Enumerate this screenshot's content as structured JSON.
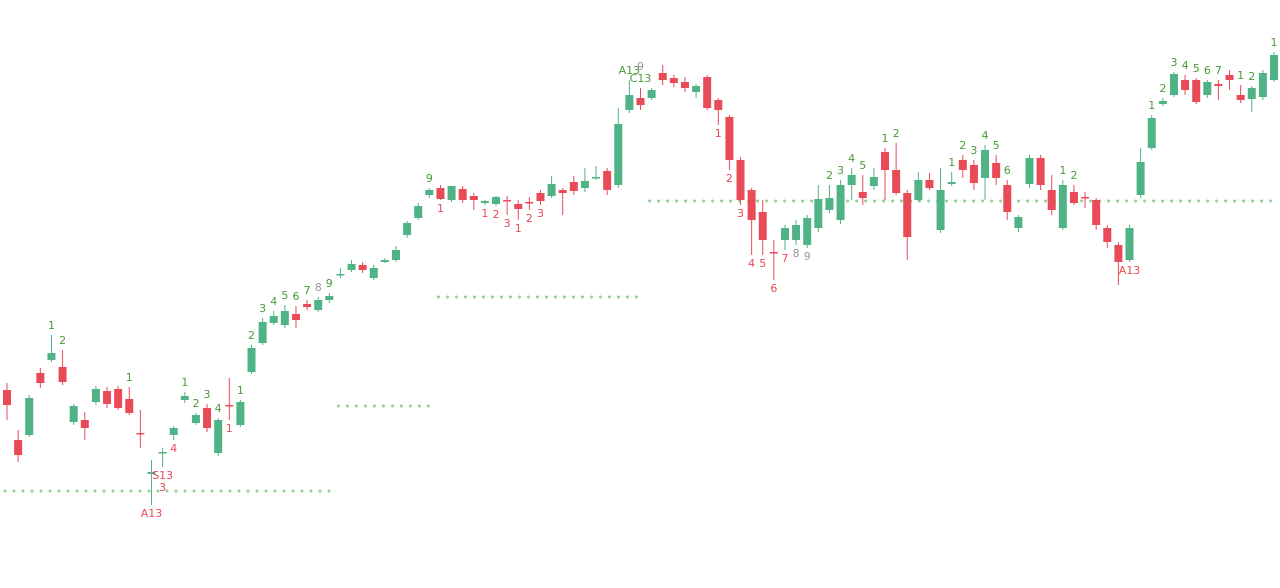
{
  "chart_data": {
    "type": "candlestick",
    "up_color": "#4fb386",
    "down_color": "#e84b57",
    "ylim": [
      0,
      588
    ],
    "ohlc": [
      [
        198,
        205,
        168,
        183
      ],
      [
        148,
        158,
        126,
        133
      ],
      [
        153,
        193,
        151,
        190
      ],
      [
        215,
        220,
        200,
        205
      ],
      [
        228,
        253,
        226,
        235
      ],
      [
        221,
        238,
        203,
        206
      ],
      [
        166,
        184,
        163,
        182
      ],
      [
        168,
        176,
        148,
        160
      ],
      [
        186,
        202,
        183,
        199
      ],
      [
        197,
        201,
        180,
        184
      ],
      [
        199,
        202,
        178,
        180
      ],
      [
        189,
        201,
        173,
        175
      ],
      [
        155,
        178,
        140,
        154
      ],
      [
        114,
        128,
        83,
        116
      ],
      [
        135,
        140,
        121,
        136
      ],
      [
        153,
        162,
        148,
        160
      ],
      [
        188,
        196,
        185,
        192
      ],
      [
        165,
        175,
        163,
        173
      ],
      [
        180,
        184,
        156,
        160
      ],
      [
        135,
        170,
        132,
        168
      ],
      [
        183,
        210,
        168,
        182
      ],
      [
        163,
        188,
        161,
        186
      ],
      [
        216,
        243,
        214,
        240
      ],
      [
        245,
        270,
        243,
        266
      ],
      [
        265,
        277,
        263,
        272
      ],
      [
        263,
        283,
        260,
        277
      ],
      [
        274,
        282,
        260,
        268
      ],
      [
        284,
        288,
        278,
        281
      ],
      [
        278,
        291,
        276,
        288
      ],
      [
        288,
        295,
        285,
        292
      ],
      [
        313,
        320,
        310,
        314
      ],
      [
        318,
        328,
        316,
        324
      ],
      [
        323,
        326,
        315,
        318
      ],
      [
        310,
        323,
        308,
        320
      ],
      [
        326,
        330,
        325,
        328
      ],
      [
        328,
        342,
        326,
        338
      ],
      [
        353,
        367,
        350,
        365
      ],
      [
        370,
        385,
        368,
        382
      ],
      [
        393,
        400,
        390,
        398
      ],
      [
        400,
        403,
        388,
        389
      ],
      [
        388,
        402,
        386,
        402
      ],
      [
        399,
        402,
        385,
        388
      ],
      [
        392,
        395,
        378,
        388
      ],
      [
        385,
        388,
        383,
        387
      ],
      [
        384,
        392,
        382,
        391
      ],
      [
        388,
        392,
        373,
        387
      ],
      [
        384,
        388,
        368,
        379
      ],
      [
        386,
        391,
        378,
        385
      ],
      [
        395,
        398,
        383,
        387
      ],
      [
        392,
        412,
        390,
        404
      ],
      [
        398,
        400,
        373,
        395
      ],
      [
        406,
        412,
        393,
        397
      ],
      [
        400,
        420,
        396,
        407
      ],
      [
        410,
        422,
        408,
        411
      ],
      [
        417,
        420,
        393,
        398
      ],
      [
        403,
        480,
        400,
        464
      ],
      [
        478,
        508,
        475,
        493
      ],
      [
        490,
        500,
        478,
        483
      ],
      [
        490,
        500,
        488,
        498
      ],
      [
        515,
        523,
        503,
        508
      ],
      [
        510,
        513,
        501,
        505
      ],
      [
        506,
        511,
        496,
        500
      ],
      [
        496,
        504,
        490,
        502
      ],
      [
        511,
        513,
        478,
        480
      ],
      [
        488,
        490,
        463,
        478
      ],
      [
        471,
        473,
        418,
        428
      ],
      [
        428,
        431,
        383,
        388
      ],
      [
        398,
        400,
        333,
        368
      ],
      [
        376,
        388,
        333,
        348
      ],
      [
        336,
        348,
        308,
        335
      ],
      [
        348,
        363,
        338,
        360
      ],
      [
        348,
        368,
        343,
        363
      ],
      [
        343,
        373,
        340,
        370
      ],
      [
        360,
        403,
        356,
        389
      ],
      [
        378,
        403,
        375,
        390
      ],
      [
        368,
        408,
        364,
        403
      ],
      [
        403,
        420,
        388,
        413
      ],
      [
        396,
        413,
        383,
        390
      ],
      [
        402,
        420,
        398,
        411
      ],
      [
        436,
        440,
        388,
        418
      ],
      [
        418,
        445,
        393,
        395
      ],
      [
        395,
        398,
        328,
        351
      ],
      [
        388,
        416,
        386,
        408
      ],
      [
        408,
        415,
        398,
        400
      ],
      [
        358,
        420,
        355,
        398
      ],
      [
        404,
        416,
        402,
        406
      ],
      [
        428,
        433,
        410,
        418
      ],
      [
        423,
        428,
        398,
        405
      ],
      [
        410,
        443,
        388,
        438
      ],
      [
        425,
        433,
        403,
        410
      ],
      [
        403,
        408,
        368,
        376
      ],
      [
        360,
        373,
        356,
        371
      ],
      [
        404,
        433,
        400,
        430
      ],
      [
        430,
        433,
        398,
        403
      ],
      [
        398,
        413,
        373,
        378
      ],
      [
        360,
        408,
        358,
        403
      ],
      [
        396,
        403,
        383,
        385
      ],
      [
        391,
        396,
        380,
        390
      ],
      [
        388,
        390,
        358,
        363
      ],
      [
        360,
        363,
        340,
        346
      ],
      [
        343,
        346,
        303,
        326
      ],
      [
        328,
        363,
        326,
        360
      ],
      [
        393,
        440,
        390,
        426
      ],
      [
        440,
        473,
        438,
        470
      ],
      [
        484,
        490,
        482,
        487
      ],
      [
        493,
        516,
        491,
        514
      ],
      [
        508,
        513,
        493,
        498
      ],
      [
        508,
        510,
        484,
        486
      ],
      [
        493,
        508,
        490,
        506
      ],
      [
        504,
        508,
        488,
        502
      ],
      [
        513,
        518,
        498,
        508
      ],
      [
        493,
        503,
        485,
        488
      ],
      [
        489,
        502,
        476,
        500
      ],
      [
        491,
        518,
        488,
        515
      ],
      [
        508,
        536,
        506,
        533
      ]
    ],
    "levels_color": "#8fd18f",
    "levels": [
      {
        "from": 0,
        "to": 29,
        "value": 97
      },
      {
        "from": 30,
        "to": 38,
        "value": 182
      },
      {
        "from": 39,
        "to": 57,
        "value": 291
      },
      {
        "from": 58,
        "to": 114,
        "value": 387
      }
    ],
    "annotations": [
      {
        "side": "above",
        "color": "#4a9a3a",
        "items": [
          [
            4,
            "1"
          ],
          [
            5,
            "2"
          ],
          [
            11,
            "1"
          ],
          [
            16,
            "1"
          ],
          [
            17,
            "2"
          ],
          [
            18,
            "3"
          ],
          [
            19,
            "4"
          ],
          [
            21,
            "1"
          ],
          [
            22,
            "2"
          ],
          [
            23,
            "3"
          ],
          [
            24,
            "4"
          ],
          [
            25,
            "5"
          ],
          [
            26,
            "6"
          ],
          [
            27,
            "7"
          ],
          [
            29,
            "9"
          ],
          [
            38,
            "9"
          ],
          [
            56,
            "A13"
          ],
          [
            57,
            "C13"
          ],
          [
            74,
            "2"
          ],
          [
            75,
            "3"
          ],
          [
            76,
            "4"
          ],
          [
            77,
            "5"
          ],
          [
            79,
            "1"
          ],
          [
            80,
            "2"
          ],
          [
            85,
            "1"
          ],
          [
            86,
            "2"
          ],
          [
            87,
            "3"
          ],
          [
            88,
            "4"
          ],
          [
            89,
            "5"
          ],
          [
            90,
            "6"
          ],
          [
            95,
            "1"
          ],
          [
            96,
            "2"
          ],
          [
            103,
            "1"
          ],
          [
            104,
            "2"
          ],
          [
            105,
            "3"
          ],
          [
            106,
            "4"
          ],
          [
            107,
            "5"
          ],
          [
            108,
            "6"
          ],
          [
            109,
            "7"
          ],
          [
            111,
            "1"
          ],
          [
            112,
            "2"
          ],
          [
            114,
            "1"
          ]
        ]
      },
      {
        "side": "above",
        "color": "#999999",
        "items": [
          [
            28,
            "8"
          ],
          [
            57,
            "9"
          ]
        ]
      },
      {
        "side": "below",
        "color": "#e84b57",
        "items": [
          [
            13,
            "A13"
          ],
          [
            14,
            "S13"
          ],
          [
            14,
            "3"
          ],
          [
            15,
            "4"
          ],
          [
            20,
            "1"
          ],
          [
            39,
            "1"
          ],
          [
            43,
            "1"
          ],
          [
            44,
            "2"
          ],
          [
            45,
            "3"
          ],
          [
            46,
            "1"
          ],
          [
            47,
            "2"
          ],
          [
            48,
            "3"
          ],
          [
            64,
            "1"
          ],
          [
            65,
            "2"
          ],
          [
            66,
            "3"
          ],
          [
            67,
            "4"
          ],
          [
            68,
            "5"
          ],
          [
            69,
            "6"
          ],
          [
            70,
            "7"
          ],
          [
            101,
            "A13"
          ]
        ]
      },
      {
        "side": "below",
        "color": "#999999",
        "items": [
          [
            71,
            "8"
          ],
          [
            72,
            "9"
          ]
        ]
      }
    ]
  }
}
